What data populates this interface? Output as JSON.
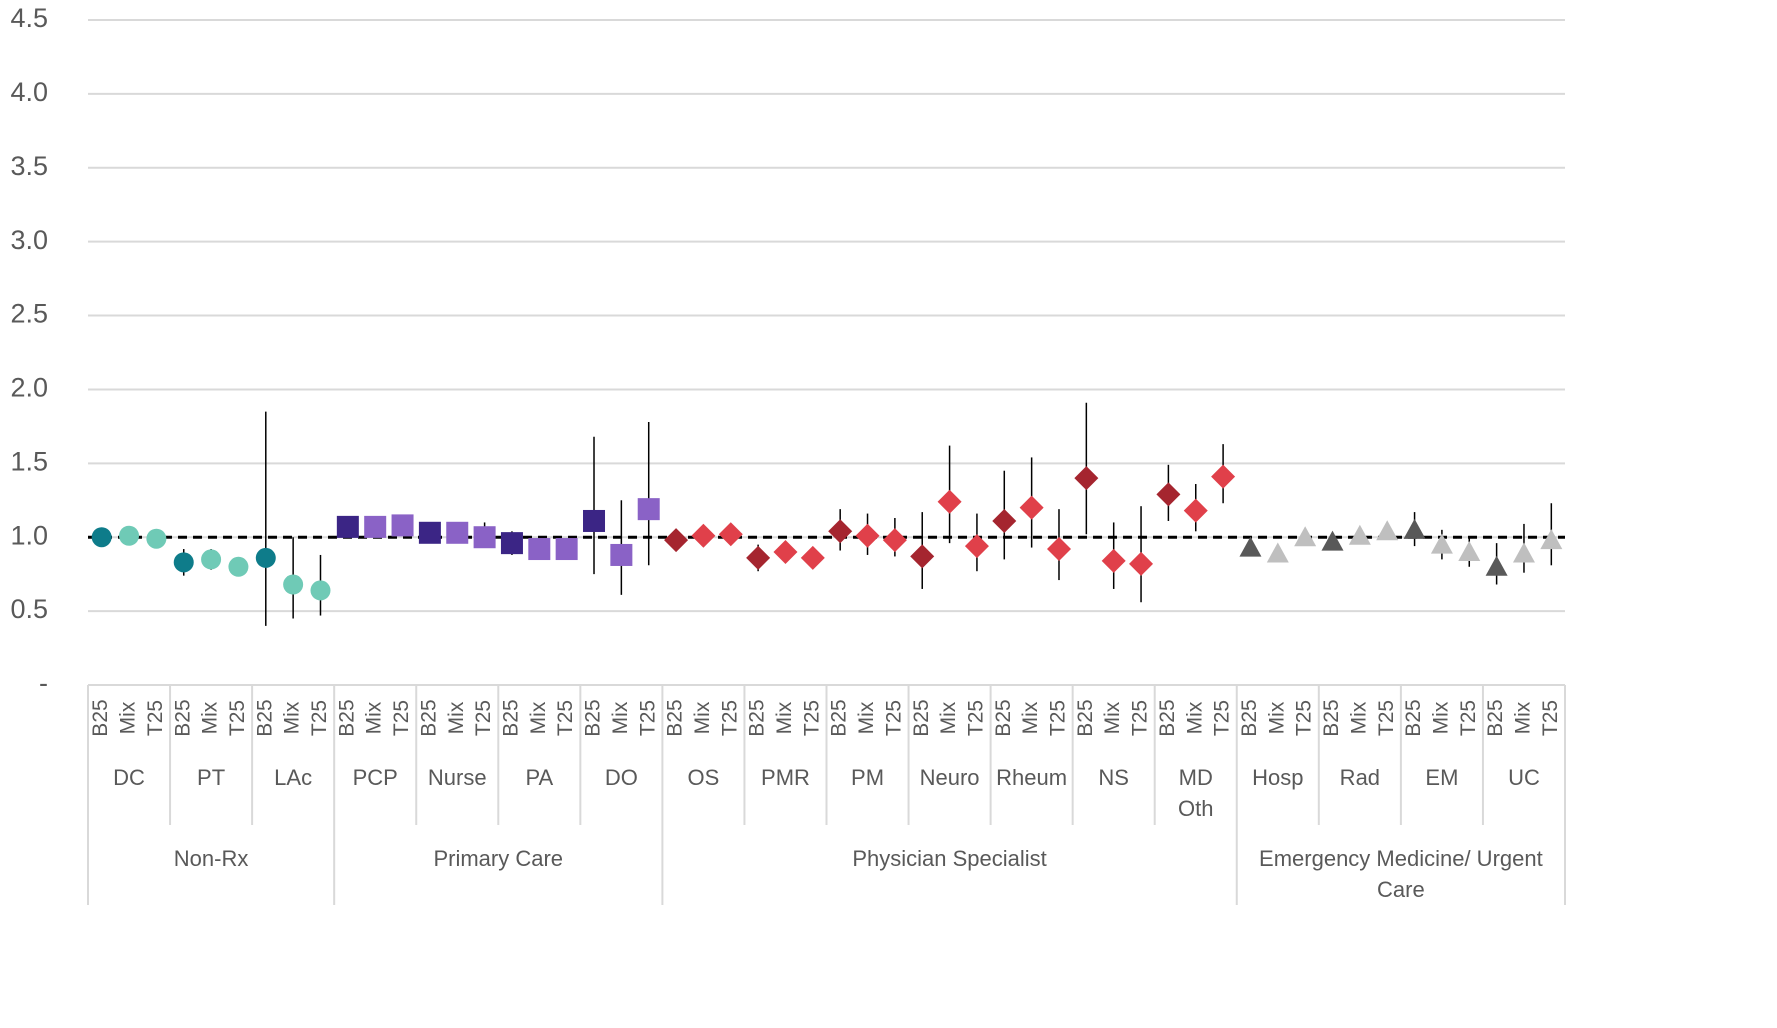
{
  "chart_data": {
    "type": "errorbar",
    "ylim": [
      0,
      4.5
    ],
    "yticks": [
      {
        "value": 0,
        "label": "-"
      },
      0.5,
      {
        "value": 1,
        "label": "1.0"
      },
      1.5,
      {
        "value": 2,
        "label": "2.0"
      },
      2.5,
      {
        "value": 3,
        "label": "3.0"
      },
      3.5,
      {
        "value": 4,
        "label": "4.0"
      },
      4.5
    ],
    "grid": true,
    "reference_line": 1,
    "groups": [
      {
        "label": "Non-Rx",
        "marker": "circle",
        "colors": [
          "#0e7c8a",
          "#6fcab6",
          "#6fcab6"
        ],
        "subgroups": [
          {
            "label": "DC",
            "categories": [
              "B25",
              "Mix",
              "T25"
            ],
            "values": [
              1.0,
              1.01,
              0.99
            ],
            "lower": [
              0.98,
              0.99,
              0.97
            ],
            "upper": [
              1.02,
              1.03,
              1.01
            ]
          },
          {
            "label": "PT",
            "categories": [
              "B25",
              "Mix",
              "T25"
            ],
            "values": [
              0.83,
              0.85,
              0.8
            ],
            "lower": [
              0.74,
              0.78,
              0.77
            ],
            "upper": [
              0.92,
              0.92,
              0.83
            ]
          },
          {
            "label": "LAc",
            "categories": [
              "B25",
              "Mix",
              "T25"
            ],
            "values": [
              0.86,
              0.68,
              0.64
            ],
            "lower": [
              0.4,
              0.45,
              0.47
            ],
            "upper": [
              1.85,
              1.0,
              0.88
            ]
          }
        ]
      },
      {
        "label": "Primary Care",
        "marker": "square",
        "colors": [
          "#3b2585",
          "#8a62c6",
          "#8a62c6"
        ],
        "subgroups": [
          {
            "label": "PCP",
            "categories": [
              "B25",
              "Mix",
              "T25"
            ],
            "values": [
              1.07,
              1.07,
              1.08
            ],
            "lower": [
              1.05,
              1.05,
              1.06
            ],
            "upper": [
              1.09,
              1.09,
              1.1
            ]
          },
          {
            "label": "Nurse",
            "categories": [
              "B25",
              "Mix",
              "T25"
            ],
            "values": [
              1.03,
              1.03,
              1.0
            ],
            "lower": [
              1.0,
              1.0,
              0.93
            ],
            "upper": [
              1.06,
              1.06,
              1.1
            ]
          },
          {
            "label": "PA",
            "categories": [
              "B25",
              "Mix",
              "T25"
            ],
            "values": [
              0.96,
              0.92,
              0.92
            ],
            "lower": [
              0.88,
              0.9,
              0.86
            ],
            "upper": [
              1.04,
              0.94,
              0.98
            ]
          },
          {
            "label": "DO",
            "categories": [
              "B25",
              "Mix",
              "T25"
            ],
            "values": [
              1.11,
              0.88,
              1.19
            ],
            "lower": [
              0.75,
              0.61,
              0.81
            ],
            "upper": [
              1.68,
              1.25,
              1.78
            ]
          }
        ]
      },
      {
        "label": "Physician Specialist",
        "marker": "diamond",
        "colors": [
          "#a5252f",
          "#e0404a",
          "#e0404a"
        ],
        "subgroups": [
          {
            "label": "OS",
            "categories": [
              "B25",
              "Mix",
              "T25"
            ],
            "values": [
              0.98,
              1.01,
              1.02
            ],
            "lower": [
              0.95,
              0.98,
              0.99
            ],
            "upper": [
              1.01,
              1.04,
              1.05
            ]
          },
          {
            "label": "PMR",
            "categories": [
              "B25",
              "Mix",
              "T25"
            ],
            "values": [
              0.86,
              0.9,
              0.86
            ],
            "lower": [
              0.77,
              0.83,
              0.83
            ],
            "upper": [
              0.95,
              0.97,
              0.89
            ]
          },
          {
            "label": "PM",
            "categories": [
              "B25",
              "Mix",
              "T25"
            ],
            "values": [
              1.04,
              1.01,
              0.98
            ],
            "lower": [
              0.91,
              0.88,
              0.87
            ],
            "upper": [
              1.19,
              1.16,
              1.13
            ]
          },
          {
            "label": "Neuro",
            "categories": [
              "B25",
              "Mix",
              "T25"
            ],
            "values": [
              0.87,
              1.24,
              0.94
            ],
            "lower": [
              0.65,
              0.96,
              0.77
            ],
            "upper": [
              1.17,
              1.62,
              1.16
            ]
          },
          {
            "label": "Rheum",
            "categories": [
              "B25",
              "Mix",
              "T25"
            ],
            "values": [
              1.11,
              1.2,
              0.92
            ],
            "lower": [
              0.85,
              0.93,
              0.71
            ],
            "upper": [
              1.45,
              1.54,
              1.19
            ]
          },
          {
            "label": "NS",
            "categories": [
              "B25",
              "Mix",
              "T25"
            ],
            "values": [
              1.4,
              0.84,
              0.82
            ],
            "lower": [
              1.02,
              0.65,
              0.56
            ],
            "upper": [
              1.91,
              1.1,
              1.21
            ]
          },
          {
            "label": "MD Oth",
            "categories": [
              "B25",
              "Mix",
              "T25"
            ],
            "values": [
              1.29,
              1.18,
              1.41
            ],
            "lower": [
              1.11,
              1.04,
              1.23
            ],
            "upper": [
              1.49,
              1.36,
              1.63
            ]
          }
        ]
      },
      {
        "label": "Emergency Medicine/ Urgent Care",
        "marker": "triangle",
        "colors": [
          "#595959",
          "#bfbfbf",
          "#bfbfbf"
        ],
        "subgroups": [
          {
            "label": "Hosp",
            "categories": [
              "B25",
              "Mix",
              "T25"
            ],
            "values": [
              0.93,
              0.89,
              1.0
            ],
            "lower": [
              0.91,
              0.87,
              0.98
            ],
            "upper": [
              0.95,
              0.91,
              1.02
            ]
          },
          {
            "label": "Rad",
            "categories": [
              "B25",
              "Mix",
              "T25"
            ],
            "values": [
              0.97,
              1.01,
              1.04
            ],
            "lower": [
              0.95,
              0.99,
              1.02
            ],
            "upper": [
              0.99,
              1.03,
              1.06
            ]
          },
          {
            "label": "EM",
            "categories": [
              "B25",
              "Mix",
              "T25"
            ],
            "values": [
              1.05,
              0.95,
              0.9
            ],
            "lower": [
              0.94,
              0.85,
              0.8
            ],
            "upper": [
              1.17,
              1.05,
              1.0
            ]
          },
          {
            "label": "UC",
            "categories": [
              "B25",
              "Mix",
              "T25"
            ],
            "values": [
              0.8,
              0.89,
              0.98
            ],
            "lower": [
              0.68,
              0.76,
              0.81
            ],
            "upper": [
              0.96,
              1.09,
              1.23
            ]
          }
        ]
      }
    ]
  }
}
